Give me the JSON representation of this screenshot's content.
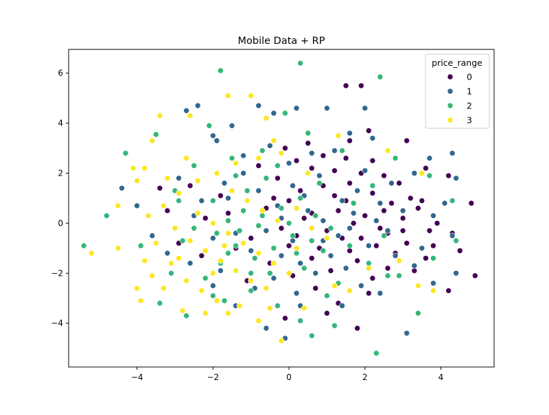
{
  "chart_data": {
    "type": "scatter",
    "title": "Mobile Data + RP",
    "xlabel": "",
    "ylabel": "",
    "xlim": [
      -5.8,
      5.4
    ],
    "ylim": [
      -5.75,
      6.95
    ],
    "xticks": [
      -4,
      -2,
      0,
      2,
      4
    ],
    "yticks": [
      -4,
      -2,
      0,
      2,
      4,
      6
    ],
    "grid": false,
    "legend": {
      "title": "price_range",
      "placement": "top-right"
    },
    "series": [
      {
        "name": "0",
        "color": "#440154",
        "points": [
          [
            1.5,
            5.5
          ],
          [
            1.9,
            5.5
          ],
          [
            1.6,
            3.3
          ],
          [
            2.1,
            3.7
          ],
          [
            2.2,
            2.5
          ],
          [
            3.1,
            3.3
          ],
          [
            3.6,
            2.2
          ],
          [
            4.2,
            1.9
          ],
          [
            4.8,
            0.8
          ],
          [
            4.9,
            -2.1
          ],
          [
            4.2,
            -2.7
          ],
          [
            3.6,
            -1.4
          ],
          [
            3.1,
            -0.8
          ],
          [
            2.8,
            -1.2
          ],
          [
            2.5,
            0.5
          ],
          [
            2.2,
            1.2
          ],
          [
            1.9,
            2.0
          ],
          [
            1.6,
            1.6
          ],
          [
            1.2,
            2.1
          ],
          [
            0.9,
            1.5
          ],
          [
            0.6,
            2.2
          ],
          [
            0.3,
            1.3
          ],
          [
            0.0,
            0.9
          ],
          [
            -0.3,
            1.8
          ],
          [
            1.5,
            0.9
          ],
          [
            2.0,
            0.3
          ],
          [
            2.6,
            -0.4
          ],
          [
            3.0,
            0.2
          ],
          [
            3.5,
            0.9
          ],
          [
            3.9,
            0.0
          ],
          [
            4.3,
            -0.4
          ],
          [
            2.3,
            -0.9
          ],
          [
            1.8,
            -1.5
          ],
          [
            1.4,
            -0.6
          ],
          [
            1.0,
            -0.3
          ],
          [
            0.6,
            0.4
          ],
          [
            0.2,
            -0.5
          ],
          [
            -0.2,
            -0.2
          ],
          [
            -0.6,
            0.6
          ],
          [
            -1.0,
            -0.6
          ],
          [
            -1.4,
            -1.0
          ],
          [
            -1.8,
            1.1
          ],
          [
            -2.2,
            0.2
          ],
          [
            -2.6,
            1.5
          ],
          [
            -3.4,
            1.4
          ],
          [
            -3.2,
            0.5
          ],
          [
            -2.9,
            -0.8
          ],
          [
            -2.3,
            -1.3
          ],
          [
            -1.1,
            -2.3
          ],
          [
            -0.5,
            -1.6
          ],
          [
            0.1,
            -2.1
          ],
          [
            0.7,
            -2.6
          ],
          [
            1.3,
            -3.2
          ],
          [
            1.8,
            -4.2
          ],
          [
            2.2,
            -2.2
          ],
          [
            2.6,
            -1.8
          ],
          [
            3.3,
            -1.9
          ],
          [
            3.8,
            -0.9
          ],
          [
            1.2,
            1.1
          ],
          [
            0.8,
            -1.0
          ],
          [
            2.9,
            1.6
          ],
          [
            3.4,
            0.6
          ],
          [
            1.7,
            0.0
          ],
          [
            1.1,
            -1.9
          ],
          [
            0.4,
            0.2
          ],
          [
            -0.8,
            2.3
          ],
          [
            0.5,
            3.2
          ],
          [
            -0.1,
            3.0
          ],
          [
            0.9,
            2.7
          ],
          [
            1.5,
            2.6
          ],
          [
            2.4,
            -0.2
          ],
          [
            3.2,
            1.0
          ],
          [
            0.0,
            -0.9
          ],
          [
            -0.4,
            1.0
          ],
          [
            1.9,
            -0.6
          ],
          [
            2.7,
            0.8
          ],
          [
            1.3,
            0.5
          ],
          [
            0.2,
            2.5
          ],
          [
            -1.6,
            0.4
          ],
          [
            4.5,
            -1.1
          ],
          [
            3.7,
            -0.3
          ],
          [
            2.1,
            -2.8
          ],
          [
            1.0,
            -3.6
          ],
          [
            -0.1,
            -3.8
          ],
          [
            1.6,
            -1.1
          ],
          [
            0.6,
            -1.4
          ],
          [
            2.5,
            1.9
          ],
          [
            3.0,
            -0.3
          ]
        ]
      },
      {
        "name": "1",
        "color": "#31688e",
        "points": [
          [
            -2.7,
            4.5
          ],
          [
            -2.4,
            4.7
          ],
          [
            -2.0,
            3.5
          ],
          [
            -1.9,
            3.3
          ],
          [
            -1.5,
            3.9
          ],
          [
            -0.8,
            4.7
          ],
          [
            -0.4,
            4.4
          ],
          [
            0.2,
            4.6
          ],
          [
            1.0,
            4.6
          ],
          [
            1.6,
            3.6
          ],
          [
            2.0,
            4.6
          ],
          [
            2.2,
            3.4
          ],
          [
            2.7,
            1.6
          ],
          [
            3.3,
            2.0
          ],
          [
            3.7,
            2.6
          ],
          [
            4.3,
            2.8
          ],
          [
            4.4,
            1.8
          ],
          [
            4.1,
            0.8
          ],
          [
            4.3,
            -0.5
          ],
          [
            4.4,
            -2.0
          ],
          [
            3.8,
            -2.4
          ],
          [
            3.3,
            -1.7
          ],
          [
            3.1,
            -4.4
          ],
          [
            2.4,
            -2.8
          ],
          [
            1.9,
            -2.5
          ],
          [
            1.4,
            -3.3
          ],
          [
            0.3,
            -3.3
          ],
          [
            -0.1,
            -4.6
          ],
          [
            -0.6,
            -4.2
          ],
          [
            -1.4,
            -3.3
          ],
          [
            -2.0,
            -2.5
          ],
          [
            -2.6,
            -1.6
          ],
          [
            -3.2,
            -1.2
          ],
          [
            -3.6,
            -0.5
          ],
          [
            -4.0,
            0.7
          ],
          [
            -4.4,
            1.4
          ],
          [
            -2.3,
            0.9
          ],
          [
            -1.7,
            1.6
          ],
          [
            -1.2,
            2.0
          ],
          [
            -0.8,
            1.3
          ],
          [
            -0.3,
            0.7
          ],
          [
            0.1,
            1.5
          ],
          [
            0.5,
            0.5
          ],
          [
            0.9,
            0.1
          ],
          [
            1.3,
            -0.5
          ],
          [
            1.7,
            0.4
          ],
          [
            2.1,
            -0.9
          ],
          [
            2.6,
            -0.3
          ],
          [
            3.0,
            0.5
          ],
          [
            -1.4,
            -0.4
          ],
          [
            -1.0,
            -1.1
          ],
          [
            -0.6,
            -0.3
          ],
          [
            -0.2,
            -1.3
          ],
          [
            0.3,
            -1.6
          ],
          [
            0.7,
            -2.0
          ],
          [
            1.1,
            -1.3
          ],
          [
            1.5,
            -1.8
          ],
          [
            -2.0,
            -0.6
          ],
          [
            -2.5,
            0.3
          ],
          [
            0.0,
            2.4
          ],
          [
            0.6,
            2.8
          ],
          [
            1.2,
            2.9
          ],
          [
            1.8,
            1.3
          ],
          [
            2.4,
            0.8
          ],
          [
            -0.5,
            3.1
          ],
          [
            -1.2,
            2.7
          ],
          [
            0.9,
            -0.7
          ],
          [
            0.4,
            1.1
          ],
          [
            -0.2,
            0.2
          ],
          [
            2.0,
            2.1
          ],
          [
            3.5,
            -1.0
          ],
          [
            -1.8,
            -1.9
          ],
          [
            -0.9,
            -2.6
          ],
          [
            0.2,
            -2.8
          ],
          [
            1.4,
            0.9
          ],
          [
            2.8,
            -1.3
          ],
          [
            -2.9,
            1.8
          ],
          [
            3.8,
            0.3
          ],
          [
            0.1,
            -0.7
          ],
          [
            -0.4,
            -2.2
          ],
          [
            1.6,
            -0.2
          ],
          [
            2.3,
            0.1
          ],
          [
            -1.6,
            1.0
          ],
          [
            0.8,
            1.9
          ]
        ]
      },
      {
        "name": "2",
        "color": "#35b779",
        "points": [
          [
            -1.8,
            6.1
          ],
          [
            0.3,
            6.4
          ],
          [
            2.4,
            5.85
          ],
          [
            -0.1,
            4.4
          ],
          [
            -2.1,
            3.9
          ],
          [
            -3.5,
            3.55
          ],
          [
            -4.3,
            2.8
          ],
          [
            -4.8,
            0.3
          ],
          [
            -5.4,
            -0.9
          ],
          [
            -3.9,
            -0.9
          ],
          [
            -3.4,
            -3.2
          ],
          [
            -2.7,
            -3.7
          ],
          [
            -1.7,
            -3.1
          ],
          [
            -1.0,
            -2.7
          ],
          [
            -0.3,
            -3.3
          ],
          [
            0.3,
            -3.9
          ],
          [
            0.6,
            -4.5
          ],
          [
            1.2,
            -4.1
          ],
          [
            2.3,
            -5.2
          ],
          [
            2.9,
            -2.1
          ],
          [
            3.4,
            -3.6
          ],
          [
            3.8,
            -1.4
          ],
          [
            4.4,
            -0.7
          ],
          [
            4.3,
            0.9
          ],
          [
            3.7,
            1.9
          ],
          [
            2.8,
            2.6
          ],
          [
            1.4,
            2.9
          ],
          [
            0.8,
            1.6
          ],
          [
            0.3,
            1.0
          ],
          [
            -0.2,
            0.6
          ],
          [
            -0.7,
            0.3
          ],
          [
            -1.2,
            0.5
          ],
          [
            -1.6,
            0.1
          ],
          [
            -2.0,
            0.9
          ],
          [
            -2.5,
            -0.2
          ],
          [
            -2.9,
            0.9
          ],
          [
            -1.4,
            -0.9
          ],
          [
            -0.9,
            -1.4
          ],
          [
            -0.4,
            -1.0
          ],
          [
            0.1,
            -0.5
          ],
          [
            0.6,
            -0.7
          ],
          [
            1.1,
            -0.2
          ],
          [
            1.6,
            -0.9
          ],
          [
            2.1,
            -1.6
          ],
          [
            2.6,
            -2.1
          ],
          [
            -2.2,
            -2.2
          ],
          [
            -1.8,
            -1.6
          ],
          [
            -1.1,
            1.3
          ],
          [
            -0.6,
            1.8
          ],
          [
            -1.5,
            2.6
          ],
          [
            -2.5,
            2.3
          ],
          [
            -3.0,
            1.3
          ],
          [
            -1.9,
            -0.4
          ],
          [
            -1.3,
            -0.3
          ],
          [
            -0.5,
            -2.0
          ],
          [
            0.4,
            -1.8
          ],
          [
            0.9,
            -1.1
          ],
          [
            1.7,
            0.8
          ],
          [
            2.2,
            1.5
          ],
          [
            -0.8,
            -0.1
          ],
          [
            -1.6,
            -1.2
          ],
          [
            0.0,
            0.0
          ],
          [
            -1.1,
            0.9
          ],
          [
            -2.8,
            -0.7
          ],
          [
            0.7,
            0.3
          ],
          [
            1.3,
            -2.4
          ],
          [
            -0.3,
            2.3
          ],
          [
            -1.4,
            1.9
          ],
          [
            2.5,
            -0.5
          ],
          [
            -0.7,
            2.9
          ],
          [
            0.5,
            3.6
          ],
          [
            -3.1,
            -2.0
          ],
          [
            -2.0,
            -2.9
          ],
          [
            1.0,
            -2.9
          ],
          [
            -1.0,
            -2.0
          ],
          [
            0.2,
            -1.2
          ]
        ]
      },
      {
        "name": "3",
        "color": "#fde725",
        "points": [
          [
            -1.6,
            5.1
          ],
          [
            -1.0,
            5.1
          ],
          [
            -0.6,
            4.2
          ],
          [
            1.3,
            3.5
          ],
          [
            -2.6,
            4.3
          ],
          [
            -3.4,
            4.3
          ],
          [
            -3.6,
            3.3
          ],
          [
            -3.8,
            2.2
          ],
          [
            -4.1,
            2.2
          ],
          [
            -4.0,
            1.7
          ],
          [
            -4.5,
            0.7
          ],
          [
            -5.2,
            -1.2
          ],
          [
            -4.5,
            -1.0
          ],
          [
            -3.8,
            -1.5
          ],
          [
            -3.6,
            -2.1
          ],
          [
            -3.3,
            -2.6
          ],
          [
            -4.0,
            -2.6
          ],
          [
            -3.9,
            -3.1
          ],
          [
            -2.8,
            -3.5
          ],
          [
            -2.2,
            -3.6
          ],
          [
            -1.6,
            -3.6
          ],
          [
            -0.8,
            -3.9
          ],
          [
            -0.2,
            -4.7
          ],
          [
            0.4,
            -3.4
          ],
          [
            1.2,
            -2.5
          ],
          [
            2.1,
            -1.8
          ],
          [
            2.6,
            2.9
          ],
          [
            3.5,
            2.0
          ],
          [
            3.4,
            -2.5
          ],
          [
            3.8,
            -2.7
          ],
          [
            -0.2,
            2.8
          ],
          [
            -0.8,
            2.6
          ],
          [
            -1.4,
            2.4
          ],
          [
            -1.9,
            2.0
          ],
          [
            -2.4,
            1.7
          ],
          [
            -2.9,
            1.2
          ],
          [
            -3.3,
            0.7
          ],
          [
            -3.7,
            0.3
          ],
          [
            -3.0,
            -0.2
          ],
          [
            -2.6,
            -0.7
          ],
          [
            -2.2,
            -1.1
          ],
          [
            -1.8,
            -1.5
          ],
          [
            -1.4,
            -1.9
          ],
          [
            -1.0,
            -2.3
          ],
          [
            -0.6,
            -2.6
          ],
          [
            -2.4,
            0.4
          ],
          [
            -2.0,
            0.0
          ],
          [
            -1.6,
            -0.4
          ],
          [
            -1.2,
            -0.8
          ],
          [
            -0.8,
            -1.2
          ],
          [
            -0.4,
            -1.6
          ],
          [
            0.0,
            -2.0
          ],
          [
            -0.3,
            0.1
          ],
          [
            -0.7,
            0.5
          ],
          [
            -1.1,
            0.9
          ],
          [
            -1.5,
            1.3
          ],
          [
            0.2,
            0.6
          ],
          [
            0.6,
            -0.2
          ],
          [
            1.0,
            -0.6
          ],
          [
            -2.7,
            2.6
          ],
          [
            -3.2,
            1.8
          ],
          [
            -3.5,
            -0.8
          ],
          [
            -3.1,
            -1.6
          ],
          [
            -2.7,
            -2.3
          ],
          [
            -2.3,
            -2.7
          ],
          [
            -1.9,
            -3.1
          ],
          [
            -1.3,
            -3.3
          ],
          [
            -0.5,
            -3.4
          ],
          [
            -0.4,
            3.3
          ],
          [
            0.5,
            2.0
          ],
          [
            0.2,
            -1.0
          ],
          [
            -2.0,
            -2.0
          ],
          [
            -1.7,
            -0.9
          ],
          [
            -2.9,
            -1.4
          ],
          [
            1.6,
            -2.7
          ],
          [
            2.9,
            -1.5
          ]
        ]
      }
    ]
  }
}
